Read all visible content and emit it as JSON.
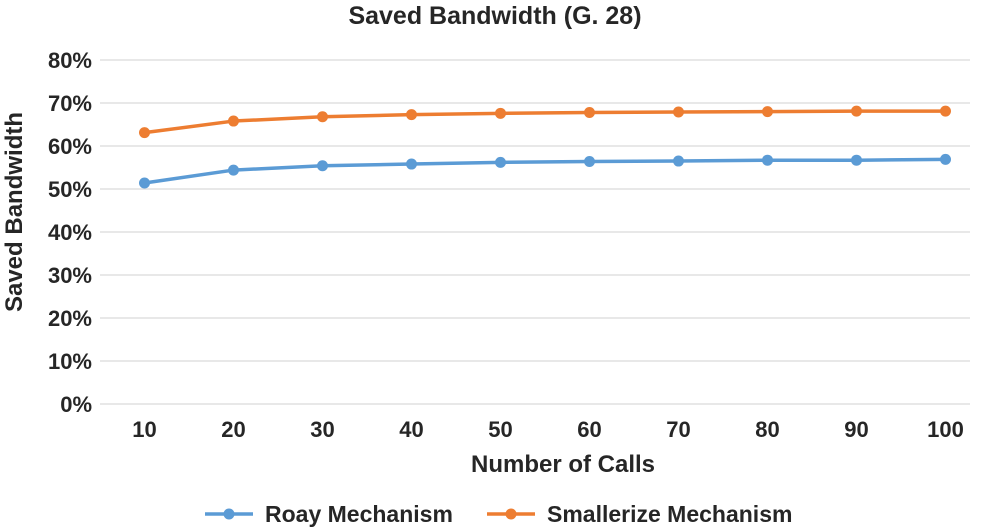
{
  "chart_data": {
    "type": "line",
    "title": "Saved Bandwidth (G.  28)",
    "xlabel": "Number of Calls",
    "ylabel": "Saved Bandwidth",
    "categories": [
      "10",
      "20",
      "30",
      "40",
      "50",
      "60",
      "70",
      "80",
      "90",
      "100"
    ],
    "ylim": [
      0,
      80
    ],
    "yticks": [
      0,
      10,
      20,
      30,
      40,
      50,
      60,
      70,
      80
    ],
    "ytick_labels": [
      "0%",
      "10%",
      "20%",
      "30%",
      "40%",
      "50%",
      "60%",
      "70%",
      "80%"
    ],
    "grid": true,
    "legend_position": "bottom",
    "series": [
      {
        "name": "Roay Mechanism",
        "color": "#5b9bd5",
        "values": [
          51.4,
          54.4,
          55.4,
          55.8,
          56.2,
          56.4,
          56.5,
          56.7,
          56.7,
          56.9
        ]
      },
      {
        "name": "Smallerize Mechanism",
        "color": "#ed7d31",
        "values": [
          63.1,
          65.8,
          66.8,
          67.3,
          67.6,
          67.8,
          67.9,
          68.0,
          68.1,
          68.1
        ]
      }
    ]
  }
}
